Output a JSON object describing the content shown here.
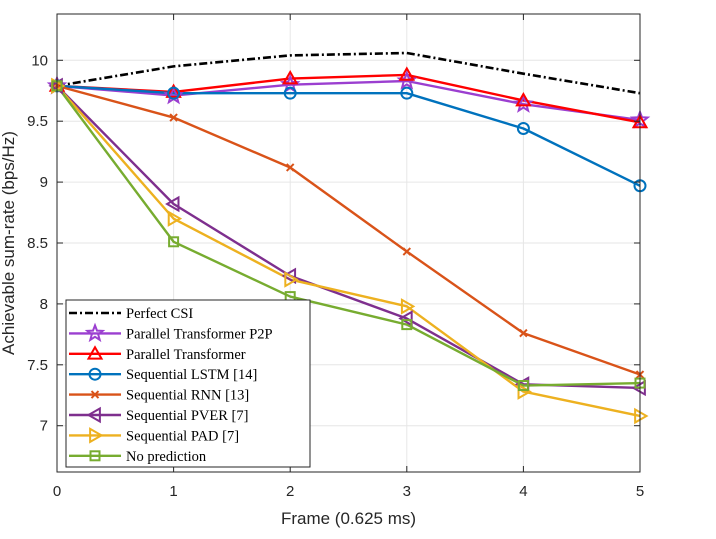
{
  "chart_data": {
    "type": "line",
    "xlabel": "Frame (0.625 ms)",
    "ylabel": "Achievable sum-rate (bps/Hz)",
    "xlim": [
      0,
      5
    ],
    "ylim": [
      6.62,
      10.38
    ],
    "xticks": [
      0,
      1,
      2,
      3,
      4,
      5
    ],
    "yticks": [
      7,
      7.5,
      8,
      8.5,
      9,
      9.5,
      10
    ],
    "xtick_labels": [
      "0",
      "1",
      "2",
      "3",
      "4",
      "5"
    ],
    "ytick_labels": [
      "7",
      "7.5",
      "8",
      "8.5",
      "9",
      "9.5",
      "10"
    ],
    "grid": true,
    "legend_position": "bottom-left",
    "x": [
      0,
      1,
      2,
      3,
      4,
      5
    ],
    "series": [
      {
        "name": "Perfect CSI",
        "values": [
          9.79,
          9.95,
          10.04,
          10.06,
          9.89,
          9.73
        ],
        "color": "#000000",
        "marker": "none",
        "dash": "dashdot"
      },
      {
        "name": "Parallel Transformer P2P",
        "values": [
          9.79,
          9.71,
          9.8,
          9.83,
          9.64,
          9.51
        ],
        "color": "#9b3fd0",
        "marker": "star"
      },
      {
        "name": "Parallel Transformer",
        "values": [
          9.79,
          9.74,
          9.85,
          9.88,
          9.67,
          9.49
        ],
        "color": "#ff0000",
        "marker": "triangle-up"
      },
      {
        "name": "Sequential LSTM [14]",
        "values": [
          9.79,
          9.73,
          9.73,
          9.73,
          9.44,
          8.97
        ],
        "color": "#0072bd",
        "marker": "circle"
      },
      {
        "name": "Sequential RNN [13]",
        "values": [
          9.79,
          9.53,
          9.12,
          8.43,
          7.76,
          7.42
        ],
        "color": "#d95319",
        "marker": "x"
      },
      {
        "name": "Sequential PVER [7]",
        "values": [
          9.79,
          8.82,
          8.23,
          7.88,
          7.34,
          7.31
        ],
        "color": "#7e2f8e",
        "marker": "triangle-left"
      },
      {
        "name": "Sequential PAD [7]",
        "values": [
          9.79,
          8.7,
          8.2,
          7.98,
          7.28,
          7.08
        ],
        "color": "#edb120",
        "marker": "triangle-right"
      },
      {
        "name": "No prediction",
        "values": [
          9.79,
          8.51,
          8.06,
          7.83,
          7.33,
          7.35
        ],
        "color": "#77ac30",
        "marker": "square"
      }
    ]
  }
}
